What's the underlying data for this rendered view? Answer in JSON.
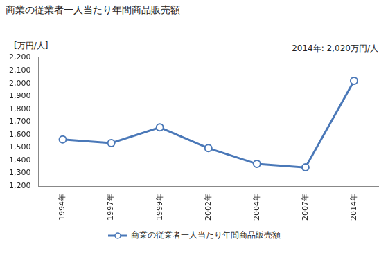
{
  "chart_data": {
    "type": "line",
    "title": "商業の従業者一人当たり年間商品販売額",
    "y_label": "[万円/人]",
    "annotation": "2014年: 2,020万円/人",
    "categories": [
      "1994年",
      "1997年",
      "1999年",
      "2002年",
      "2004年",
      "2007年",
      "2014年"
    ],
    "series": [
      {
        "name": "商業の従業者一人当たり年間商品販売額",
        "color": "#4a78b8",
        "marker": "circle",
        "values": [
          1563,
          1535,
          1657,
          1495,
          1372,
          1345,
          2020
        ]
      }
    ],
    "ylim": [
      1200,
      2200
    ],
    "yticks": [
      {
        "value": 1200,
        "label": "1,200"
      },
      {
        "value": 1300,
        "label": "1,300"
      },
      {
        "value": 1400,
        "label": "1,400"
      },
      {
        "value": 1500,
        "label": "1,500"
      },
      {
        "value": 1600,
        "label": "1,600"
      },
      {
        "value": 1700,
        "label": "1,700"
      },
      {
        "value": 1800,
        "label": "1,800"
      },
      {
        "value": 1900,
        "label": "1,900"
      },
      {
        "value": 2000,
        "label": "2,000"
      },
      {
        "value": 2100,
        "label": "2,100"
      },
      {
        "value": 2200,
        "label": "2,200"
      }
    ],
    "grid": false,
    "legend": "bottom"
  }
}
